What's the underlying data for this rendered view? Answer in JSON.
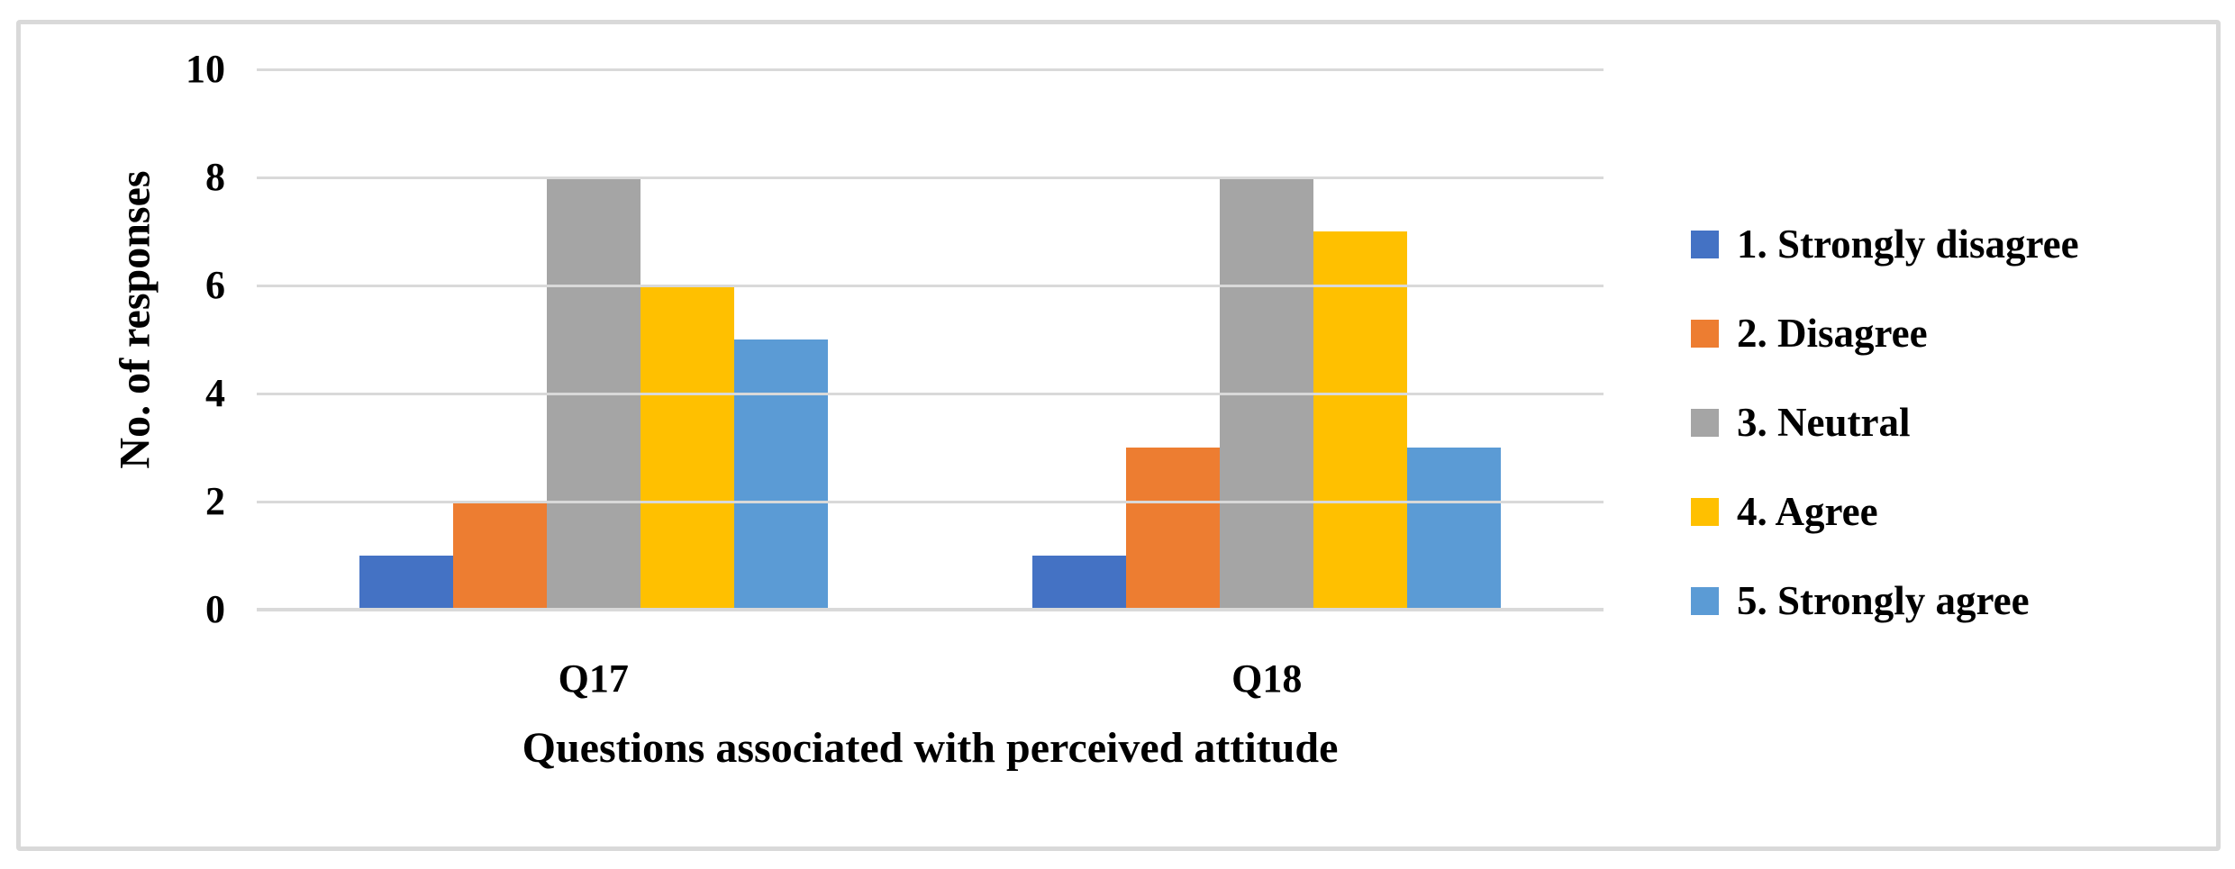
{
  "figure": {
    "background_color": "#FFFFFF",
    "border_color": "#D9D9D9"
  },
  "chart_data": {
    "type": "bar",
    "title": "",
    "xlabel": "Questions associated with perceived attitude",
    "ylabel": "No. of responses",
    "categories": [
      "Q17",
      "Q18"
    ],
    "series": [
      {
        "name": "1. Strongly disagree",
        "color": "#4472C4",
        "values": [
          1,
          1
        ]
      },
      {
        "name": "2. Disagree",
        "color": "#ED7D31",
        "values": [
          2,
          3
        ]
      },
      {
        "name": "3. Neutral",
        "color": "#A5A5A5",
        "values": [
          8,
          8
        ]
      },
      {
        "name": "4. Agree",
        "color": "#FFC000",
        "values": [
          6,
          7
        ]
      },
      {
        "name": "5. Strongly agree",
        "color": "#5B9BD5",
        "values": [
          5,
          3
        ]
      }
    ],
    "ylim": [
      0,
      10
    ],
    "yticks": [
      0,
      2,
      4,
      6,
      8,
      10
    ],
    "grid": true,
    "gridline_color": "#D9D9D9",
    "axis_line_color": "#D9D9D9",
    "legend_position": "right"
  }
}
